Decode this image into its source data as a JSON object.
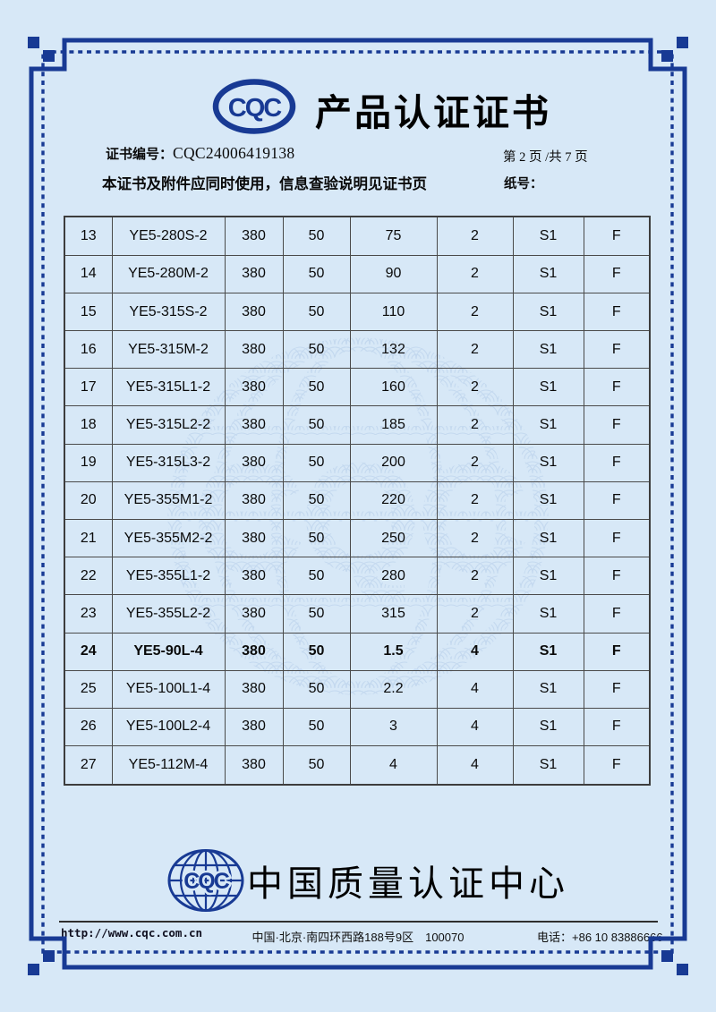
{
  "page": {
    "bg_color": "#d7e8f7",
    "accent_color": "#183a94",
    "grid_color": "#4a4a4a"
  },
  "header": {
    "logo_text": "CQC",
    "title": "产品认证证书",
    "cert_no_label": "证书编号：",
    "cert_no": "CQC24006419138",
    "page_info": "第 2 页 /共 7 页",
    "notice": "本证书及附件应同时使用，信息查验说明见证书页",
    "paper_no_label": "纸号："
  },
  "table": {
    "bold_row": "24",
    "rows": [
      [
        "13",
        "YE5-280S-2",
        "380",
        "50",
        "75",
        "2",
        "S1",
        "F"
      ],
      [
        "14",
        "YE5-280M-2",
        "380",
        "50",
        "90",
        "2",
        "S1",
        "F"
      ],
      [
        "15",
        "YE5-315S-2",
        "380",
        "50",
        "110",
        "2",
        "S1",
        "F"
      ],
      [
        "16",
        "YE5-315M-2",
        "380",
        "50",
        "132",
        "2",
        "S1",
        "F"
      ],
      [
        "17",
        "YE5-315L1-2",
        "380",
        "50",
        "160",
        "2",
        "S1",
        "F"
      ],
      [
        "18",
        "YE5-315L2-2",
        "380",
        "50",
        "185",
        "2",
        "S1",
        "F"
      ],
      [
        "19",
        "YE5-315L3-2",
        "380",
        "50",
        "200",
        "2",
        "S1",
        "F"
      ],
      [
        "20",
        "YE5-355M1-2",
        "380",
        "50",
        "220",
        "2",
        "S1",
        "F"
      ],
      [
        "21",
        "YE5-355M2-2",
        "380",
        "50",
        "250",
        "2",
        "S1",
        "F"
      ],
      [
        "22",
        "YE5-355L1-2",
        "380",
        "50",
        "280",
        "2",
        "S1",
        "F"
      ],
      [
        "23",
        "YE5-355L2-2",
        "380",
        "50",
        "315",
        "2",
        "S1",
        "F"
      ],
      [
        "24",
        "YE5-90L-4",
        "380",
        "50",
        "1.5",
        "4",
        "S1",
        "F"
      ],
      [
        "25",
        "YE5-100L1-4",
        "380",
        "50",
        "2.2",
        "4",
        "S1",
        "F"
      ],
      [
        "26",
        "YE5-100L2-4",
        "380",
        "50",
        "3",
        "4",
        "S1",
        "F"
      ],
      [
        "27",
        "YE5-112M-4",
        "380",
        "50",
        "4",
        "4",
        "S1",
        "F"
      ]
    ]
  },
  "watermark": {
    "logo_text": "CQC"
  },
  "footer": {
    "logo_text": "CQC",
    "org_name": "中国质量认证中心",
    "website": "http://www.cqc.com.cn",
    "address": "中国·北京·南四环西路188号9区　100070",
    "phone": "电话：+86 10 83886666"
  }
}
